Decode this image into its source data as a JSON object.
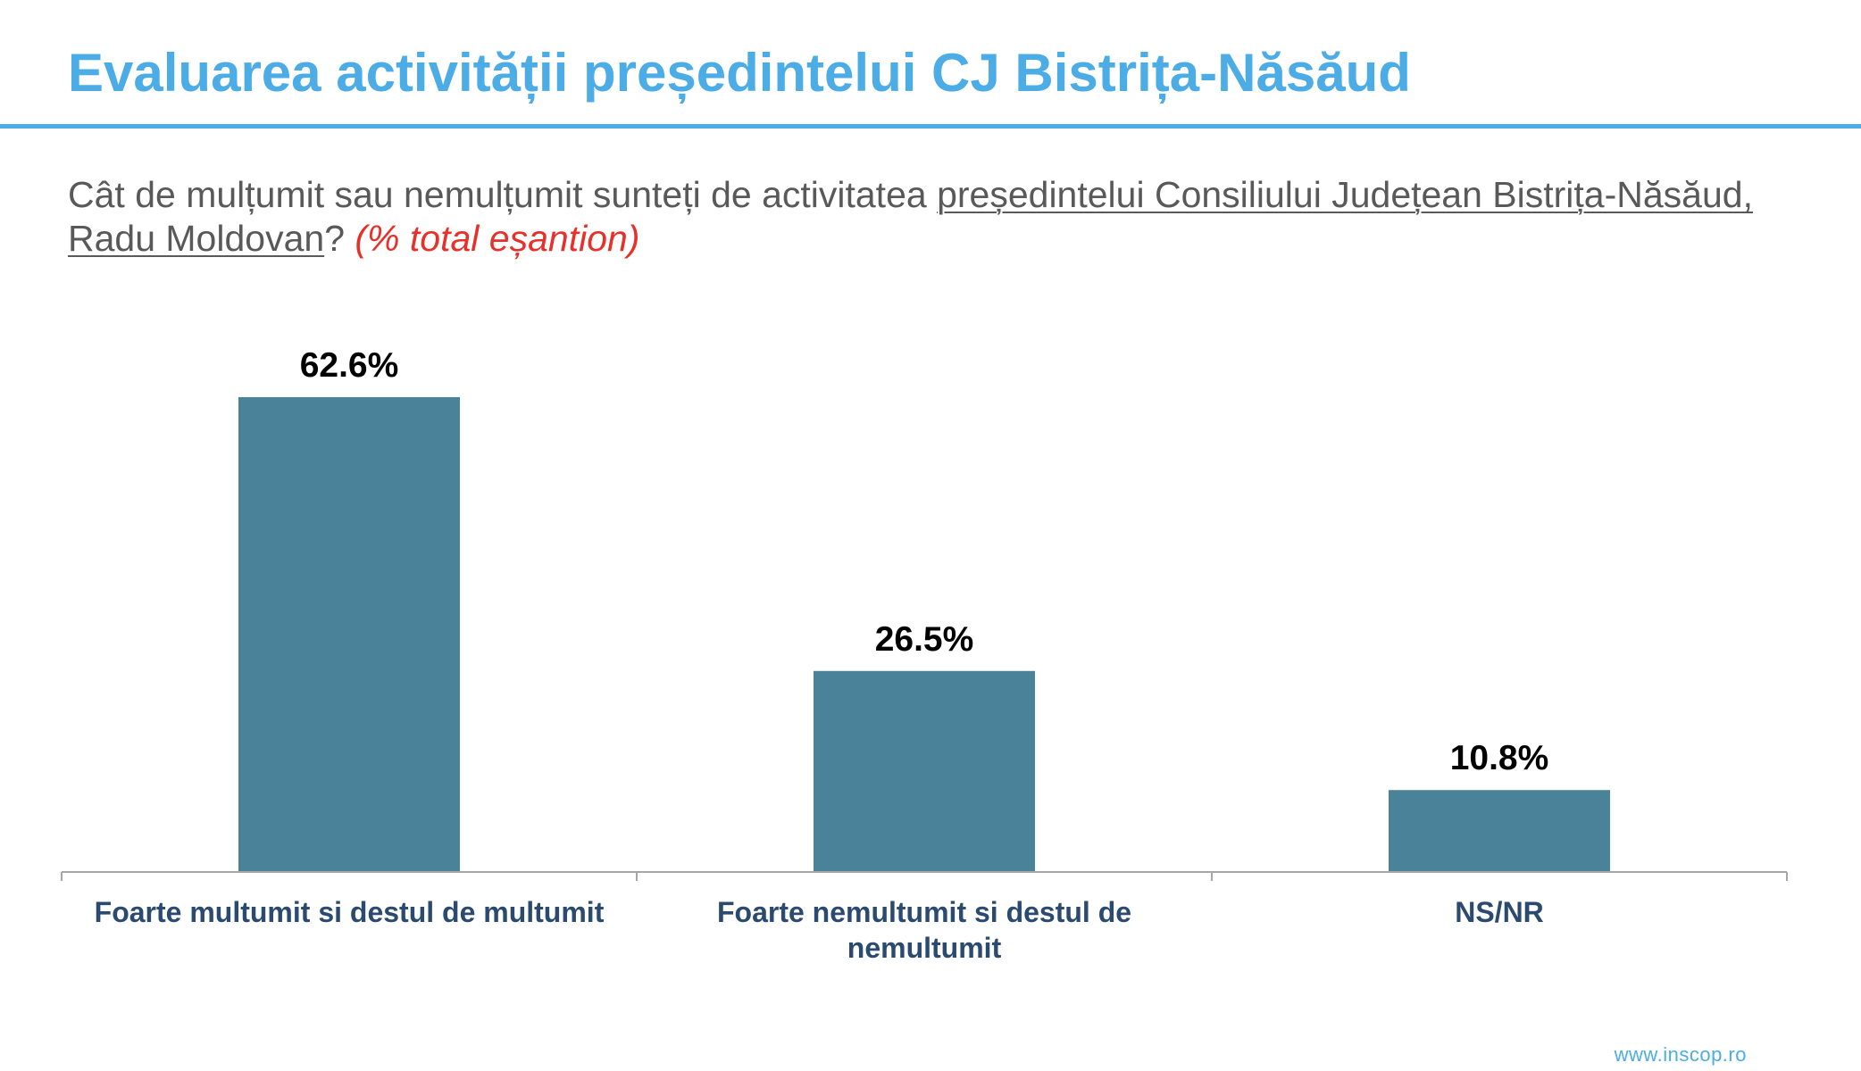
{
  "slide": {
    "title": "Evaluarea activității președintelui CJ Bistrița-Năsăud",
    "question_prefix": "Cât de mulțumit sau nemulțumit sunteți de activitatea ",
    "question_subject": "președintelui Consiliului Județean Bistrița-Năsăud, Radu Moldovan",
    "question_mark": "?",
    "question_note": "(% total eșantion)",
    "footer_url": "www.inscop.ro"
  },
  "colors": {
    "title": "#4BACE6",
    "rule": "#4BACE6",
    "question_text": "#595959",
    "note": "#E8302A",
    "bar": "#4A8399",
    "axis": "#A6A6A6",
    "category_label": "#2B4A6F",
    "value_label": "#000000",
    "footer": "#4BACE6"
  },
  "chart_data": {
    "type": "bar",
    "title": "",
    "xlabel": "",
    "ylabel": "",
    "categories": [
      "Foarte multumit si destul de multumit",
      "Foarte nemultumit si destul de nemultumit",
      "NS/NR"
    ],
    "series": [
      {
        "values": [
          62.6,
          26.5,
          10.8
        ]
      }
    ],
    "value_labels": [
      "62.6%",
      "26.5%",
      "10.8%"
    ],
    "ylim": [
      0,
      62.6
    ],
    "grid": false,
    "legend": "none",
    "axis_visible": false
  }
}
